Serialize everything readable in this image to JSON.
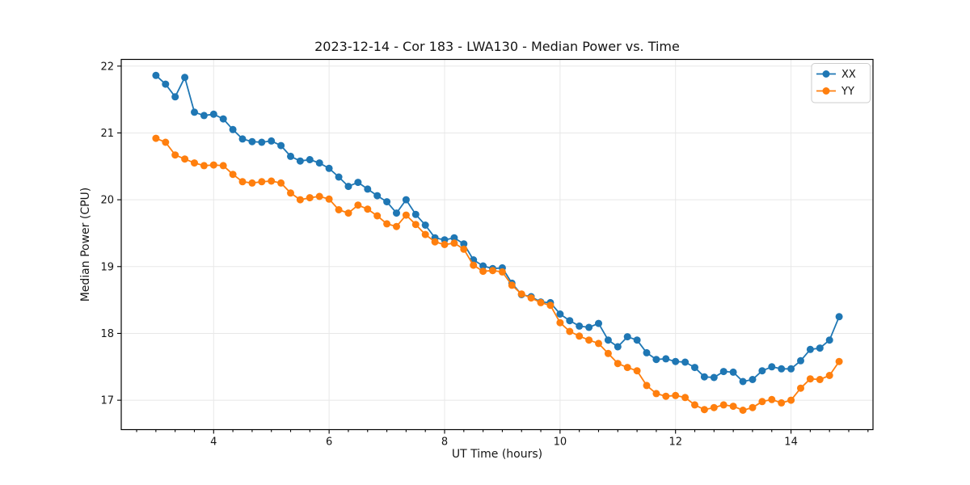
{
  "chart_data": {
    "type": "line",
    "title": "2023-12-14 - Cor 183 - LWA130 - Median Power vs. Time",
    "xlabel": "UT Time (hours)",
    "ylabel": "Median Power (CPU)",
    "xlim": [
      2.4,
      15.42
    ],
    "ylim": [
      16.56,
      22.1
    ],
    "x_ticks": [
      4,
      6,
      8,
      10,
      12,
      14
    ],
    "y_ticks": [
      17,
      18,
      19,
      20,
      21,
      22
    ],
    "x_minor_tick_step": 0.3333,
    "grid": true,
    "legend_position": "upper right",
    "marker": "circle",
    "x": [
      3.0,
      3.1667,
      3.3333,
      3.5,
      3.6667,
      3.8333,
      4.0,
      4.1667,
      4.3333,
      4.5,
      4.6667,
      4.8333,
      5.0,
      5.1667,
      5.3333,
      5.5,
      5.6667,
      5.8333,
      6.0,
      6.1667,
      6.3333,
      6.5,
      6.6667,
      6.8333,
      7.0,
      7.1667,
      7.3333,
      7.5,
      7.6667,
      7.8333,
      8.0,
      8.1667,
      8.3333,
      8.5,
      8.6667,
      8.8333,
      9.0,
      9.1667,
      9.3333,
      9.5,
      9.6667,
      9.8333,
      10.0,
      10.1667,
      10.3333,
      10.5,
      10.6667,
      10.8333,
      11.0,
      11.1667,
      11.3333,
      11.5,
      11.6667,
      11.8333,
      12.0,
      12.1667,
      12.3333,
      12.5,
      12.6667,
      12.8333,
      13.0,
      13.1667,
      13.3333,
      13.5,
      13.6667,
      13.8333,
      14.0,
      14.1667,
      14.3333,
      14.5,
      14.6667,
      14.8333
    ],
    "series": [
      {
        "name": "XX",
        "color": "#1f77b4",
        "values": [
          21.86,
          21.73,
          21.54,
          21.83,
          21.31,
          21.26,
          21.28,
          21.21,
          21.05,
          20.91,
          20.87,
          20.86,
          20.88,
          20.81,
          20.65,
          20.58,
          20.6,
          20.55,
          20.47,
          20.34,
          20.2,
          20.26,
          20.16,
          20.06,
          19.97,
          19.8,
          20.0,
          19.78,
          19.62,
          19.43,
          19.4,
          19.43,
          19.34,
          19.1,
          19.01,
          18.97,
          18.98,
          18.75,
          18.58,
          18.55,
          18.47,
          18.46,
          18.29,
          18.19,
          18.11,
          18.09,
          18.15,
          17.9,
          17.8,
          17.95,
          17.9,
          17.71,
          17.61,
          17.62,
          17.58,
          17.57,
          17.49,
          17.35,
          17.34,
          17.43,
          17.42,
          17.28,
          17.31,
          17.44,
          17.5,
          17.47,
          17.47,
          17.59,
          17.76,
          17.78,
          17.9,
          18.25
        ]
      },
      {
        "name": "YY",
        "color": "#ff7f0e",
        "values": [
          20.92,
          20.86,
          20.67,
          20.61,
          20.55,
          20.51,
          20.52,
          20.51,
          20.38,
          20.27,
          20.25,
          20.27,
          20.28,
          20.25,
          20.1,
          20.0,
          20.03,
          20.05,
          20.01,
          19.85,
          19.8,
          19.92,
          19.86,
          19.76,
          19.64,
          19.6,
          19.77,
          19.63,
          19.48,
          19.37,
          19.33,
          19.35,
          19.26,
          19.02,
          18.93,
          18.94,
          18.92,
          18.72,
          18.59,
          18.53,
          18.46,
          18.42,
          18.16,
          18.03,
          17.96,
          17.9,
          17.85,
          17.7,
          17.55,
          17.49,
          17.44,
          17.22,
          17.1,
          17.06,
          17.07,
          17.04,
          16.93,
          16.86,
          16.89,
          16.93,
          16.91,
          16.85,
          16.89,
          16.98,
          17.01,
          16.96,
          17.0,
          17.18,
          17.32,
          17.31,
          17.37,
          17.58
        ]
      }
    ]
  }
}
